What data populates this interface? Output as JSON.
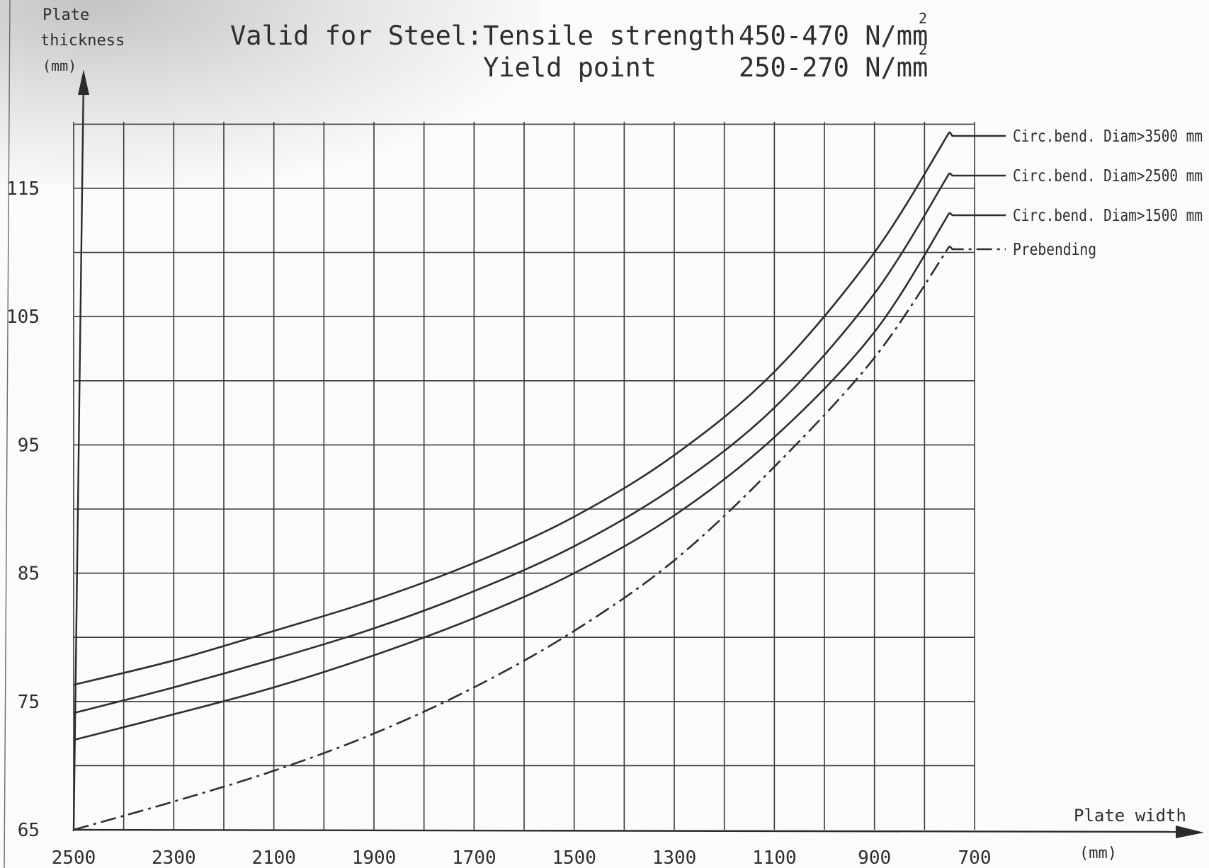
{
  "header": {
    "title_prefix": "Valid for Steel:",
    "tensile_label": "Tensile strength",
    "tensile_value": "450-470 N/mm",
    "yield_label": "Yield point",
    "yield_value": "250-270 N/mm",
    "superscript": "2"
  },
  "chart_data": {
    "type": "line",
    "title": "Valid for Steel: Tensile strength 450-470 N/mm2 Yield point 250-270 N/mm2",
    "ylabel_lines": [
      "Plate",
      "thickness",
      "(mm)"
    ],
    "xlabel_lines": [
      "Plate width",
      "(mm)"
    ],
    "xlim": [
      2500,
      700
    ],
    "ylim": [
      65,
      120
    ],
    "x_ticks": [
      "2500",
      "2300",
      "2100",
      "1900",
      "1700",
      "1500",
      "1300",
      "1100",
      "900",
      "700"
    ],
    "y_ticks": [
      "65",
      "75",
      "85",
      "95",
      "105",
      "115"
    ],
    "grid": true,
    "series": [
      {
        "name": "Circ.bend. Diam>3500 mm",
        "style": "solid",
        "points": [
          [
            2500,
            76.3
          ],
          [
            2300,
            78.2
          ],
          [
            2100,
            80.5
          ],
          [
            1900,
            82.9
          ],
          [
            1700,
            85.8
          ],
          [
            1500,
            89.4
          ],
          [
            1300,
            94.2
          ],
          [
            1100,
            100.7
          ],
          [
            900,
            110.0
          ],
          [
            750,
            119.4
          ]
        ]
      },
      {
        "name": "Circ.bend. Diam>2500 mm",
        "style": "solid",
        "points": [
          [
            2500,
            74.1
          ],
          [
            2300,
            76.1
          ],
          [
            2100,
            78.3
          ],
          [
            1900,
            80.7
          ],
          [
            1700,
            83.6
          ],
          [
            1500,
            87.1
          ],
          [
            1300,
            91.7
          ],
          [
            1100,
            97.9
          ],
          [
            900,
            106.8
          ],
          [
            750,
            116.2
          ]
        ]
      },
      {
        "name": "Circ.bend. Diam>1500 mm",
        "style": "solid",
        "points": [
          [
            2500,
            72.0
          ],
          [
            2300,
            74.0
          ],
          [
            2100,
            76.1
          ],
          [
            1900,
            78.6
          ],
          [
            1700,
            81.5
          ],
          [
            1500,
            85.0
          ],
          [
            1300,
            89.5
          ],
          [
            1100,
            95.6
          ],
          [
            900,
            103.8
          ],
          [
            750,
            113.1
          ]
        ]
      },
      {
        "name": "Prebending",
        "style": "dashdot",
        "points": [
          [
            2500,
            65.0
          ],
          [
            2300,
            67.2
          ],
          [
            2100,
            69.6
          ],
          [
            1900,
            72.5
          ],
          [
            1700,
            76.1
          ],
          [
            1500,
            80.5
          ],
          [
            1300,
            86.0
          ],
          [
            1100,
            93.3
          ],
          [
            900,
            101.8
          ],
          [
            750,
            110.5
          ]
        ]
      }
    ]
  }
}
